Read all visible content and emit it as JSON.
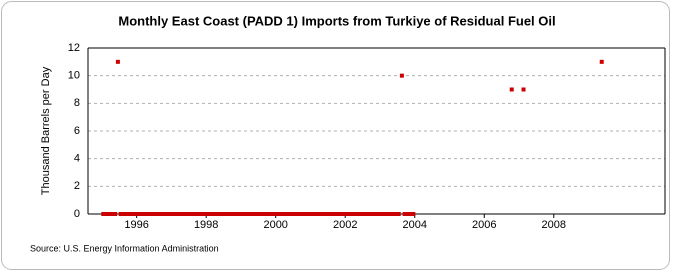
{
  "chart_data": {
    "type": "scatter",
    "title": "Monthly East Coast (PADD 1) Imports from Turkiye of Residual Fuel Oil",
    "y_label": "Thousand Barrels per Day",
    "source": "Source: U.S. Energy Information Administration",
    "xlim": [
      1994.6,
      2011.2
    ],
    "xticks": [
      1996,
      1998,
      2000,
      2002,
      2004,
      2006,
      2008
    ],
    "ylim": [
      0,
      12
    ],
    "yticks": [
      0,
      2,
      4,
      6,
      8,
      10,
      12
    ],
    "grid": true,
    "series": [
      {
        "color": "#cc0000",
        "x": [
          1995.04,
          1995.13,
          1995.21,
          1995.29,
          1995.38,
          1995.46,
          1995.54,
          1995.63,
          1995.71,
          1995.79,
          1995.88,
          1995.96,
          1996.04,
          1996.13,
          1996.21,
          1996.29,
          1996.38,
          1996.46,
          1996.54,
          1996.63,
          1996.71,
          1996.79,
          1996.88,
          1996.96,
          1997.04,
          1997.13,
          1997.21,
          1997.29,
          1997.38,
          1997.46,
          1997.54,
          1997.63,
          1997.71,
          1997.79,
          1997.88,
          1997.96,
          1998.04,
          1998.13,
          1998.21,
          1998.29,
          1998.38,
          1998.46,
          1998.54,
          1998.63,
          1998.71,
          1998.79,
          1998.88,
          1998.96,
          1999.04,
          1999.13,
          1999.21,
          1999.29,
          1999.38,
          1999.46,
          1999.54,
          1999.63,
          1999.71,
          1999.79,
          1999.88,
          1999.96,
          2000.04,
          2000.13,
          2000.21,
          2000.29,
          2000.38,
          2000.46,
          2000.54,
          2000.63,
          2000.71,
          2000.79,
          2000.88,
          2000.96,
          2001.04,
          2001.13,
          2001.21,
          2001.29,
          2001.38,
          2001.46,
          2001.54,
          2001.63,
          2001.71,
          2001.79,
          2001.88,
          2001.96,
          2002.04,
          2002.13,
          2002.21,
          2002.29,
          2002.38,
          2002.46,
          2002.54,
          2002.63,
          2002.71,
          2002.79,
          2002.88,
          2002.96,
          2003.04,
          2003.13,
          2003.21,
          2003.29,
          2003.38,
          2003.46,
          2003.54,
          2003.63,
          2003.71,
          2003.79,
          2003.88,
          2003.96,
          2006.79,
          2007.13,
          2009.38
        ],
        "values": [
          0,
          0,
          0,
          0,
          0,
          11,
          0,
          0,
          0,
          0,
          0,
          0,
          0,
          0,
          0,
          0,
          0,
          0,
          0,
          0,
          0,
          0,
          0,
          0,
          0,
          0,
          0,
          0,
          0,
          0,
          0,
          0,
          0,
          0,
          0,
          0,
          0,
          0,
          0,
          0,
          0,
          0,
          0,
          0,
          0,
          0,
          0,
          0,
          0,
          0,
          0,
          0,
          0,
          0,
          0,
          0,
          0,
          0,
          0,
          0,
          0,
          0,
          0,
          0,
          0,
          0,
          0,
          0,
          0,
          0,
          0,
          0,
          0,
          0,
          0,
          0,
          0,
          0,
          0,
          0,
          0,
          0,
          0,
          0,
          0,
          0,
          0,
          0,
          0,
          0,
          0,
          0,
          0,
          0,
          0,
          0,
          0,
          0,
          0,
          0,
          0,
          0,
          0,
          10,
          0,
          0,
          0,
          0,
          9,
          9,
          11
        ]
      }
    ]
  }
}
